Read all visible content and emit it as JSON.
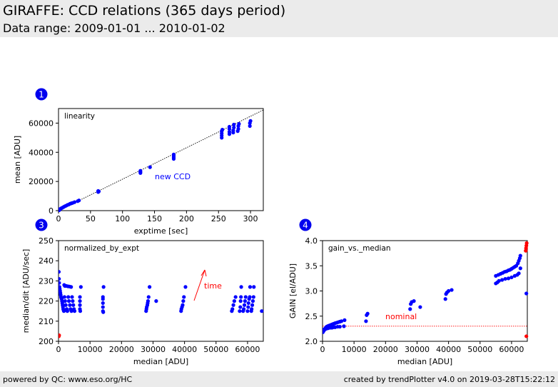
{
  "header": {
    "title": "GIRAFFE: CCD relations (365 days period)",
    "subtitle": "Data range: 2009-01-01 ... 2010-01-02"
  },
  "footer": {
    "left": "powered by QC: www.eso.org/HC",
    "right": "created by trendPlotter v4.0 on 2019-03-28T15:22:12"
  },
  "colors": {
    "points": "#0000ff",
    "annotation": "#ff0000",
    "badge": "#0000ee",
    "fit_line": "#000000"
  },
  "chart_data": [
    {
      "type": "scatter",
      "badge": "1",
      "label": "linearity",
      "xlabel": "exptime [sec]",
      "ylabel": "mean [ADU]",
      "xlim": [
        0,
        320
      ],
      "ylim": [
        0,
        70000
      ],
      "xticks": [
        0,
        50,
        100,
        150,
        200,
        250,
        300
      ],
      "yticks": [
        0,
        20000,
        40000,
        60000
      ],
      "annotation": "new CCD",
      "fit_line": [
        [
          0,
          0
        ],
        [
          320,
          69000
        ]
      ],
      "points": [
        [
          0.2,
          500
        ],
        [
          0.5,
          900
        ],
        [
          1,
          300
        ],
        [
          2,
          800
        ],
        [
          3,
          1200
        ],
        [
          4,
          1500
        ],
        [
          5,
          1800
        ],
        [
          6,
          2000
        ],
        [
          8,
          2500
        ],
        [
          10,
          3000
        ],
        [
          12,
          3400
        ],
        [
          14,
          3900
        ],
        [
          16,
          4200
        ],
        [
          18,
          4700
        ],
        [
          20,
          5000
        ],
        [
          22,
          5300
        ],
        [
          25,
          5800
        ],
        [
          30,
          6500
        ],
        [
          32,
          7000
        ],
        [
          62,
          12800
        ],
        [
          62,
          13500
        ],
        [
          63,
          13200
        ],
        [
          128,
          25800
        ],
        [
          128,
          26500
        ],
        [
          128,
          27300
        ],
        [
          143,
          29800
        ],
        [
          180,
          35500
        ],
        [
          180,
          36500
        ],
        [
          180,
          37500
        ],
        [
          180,
          38500
        ],
        [
          255,
          50000
        ],
        [
          255,
          51500
        ],
        [
          255,
          53000
        ],
        [
          255,
          54500
        ],
        [
          256,
          55500
        ],
        [
          267,
          52500
        ],
        [
          267,
          54000
        ],
        [
          267,
          56000
        ],
        [
          267,
          57500
        ],
        [
          273,
          53500
        ],
        [
          273,
          55000
        ],
        [
          274,
          57000
        ],
        [
          274,
          59000
        ],
        [
          280,
          54500
        ],
        [
          281,
          56000
        ],
        [
          281,
          58000
        ],
        [
          282,
          59500
        ],
        [
          299,
          58000
        ],
        [
          299,
          60000
        ],
        [
          300,
          61500
        ]
      ]
    },
    {
      "type": "scatter",
      "badge": "3",
      "label": "normalized_by_expt",
      "xlabel": "median [ADU]",
      "ylabel": "median/dit [ADU/sec]",
      "xlim": [
        0,
        65000
      ],
      "ylim": [
        200,
        250
      ],
      "xticks": [
        0,
        10000,
        20000,
        30000,
        40000,
        50000,
        60000
      ],
      "yticks": [
        200,
        210,
        220,
        230,
        240,
        250
      ],
      "annotation": "time",
      "points": [
        [
          100,
          234.5
        ],
        [
          150,
          231
        ],
        [
          200,
          229
        ],
        [
          300,
          227
        ],
        [
          400,
          226
        ],
        [
          500,
          225
        ],
        [
          600,
          224
        ],
        [
          700,
          223
        ],
        [
          800,
          222
        ],
        [
          900,
          221.5
        ],
        [
          1000,
          221
        ],
        [
          1100,
          220
        ],
        [
          1200,
          219
        ],
        [
          1300,
          218
        ],
        [
          1400,
          217
        ],
        [
          1500,
          216
        ],
        [
          1600,
          215.5
        ],
        [
          1700,
          215
        ],
        [
          1800,
          228
        ],
        [
          2000,
          227.5
        ],
        [
          2200,
          227.5
        ],
        [
          2500,
          227.5
        ],
        [
          3000,
          227.3
        ],
        [
          3500,
          227.2
        ],
        [
          4000,
          227
        ],
        [
          1900,
          222
        ],
        [
          2100,
          220
        ],
        [
          2300,
          218
        ],
        [
          2600,
          216
        ],
        [
          2800,
          215
        ],
        [
          3100,
          222
        ],
        [
          3300,
          220
        ],
        [
          3600,
          218
        ],
        [
          3800,
          216
        ],
        [
          4100,
          215
        ],
        [
          4300,
          222
        ],
        [
          4500,
          220
        ],
        [
          4700,
          218
        ],
        [
          4900,
          216
        ],
        [
          5100,
          215
        ],
        [
          6800,
          222
        ],
        [
          6800,
          220
        ],
        [
          6800,
          218
        ],
        [
          6800,
          216
        ],
        [
          6900,
          215
        ],
        [
          7100,
          227
        ],
        [
          14100,
          222
        ],
        [
          14100,
          221
        ],
        [
          14100,
          219
        ],
        [
          14100,
          217
        ],
        [
          14100,
          215
        ],
        [
          14200,
          214.5
        ],
        [
          14300,
          227
        ],
        [
          27800,
          215
        ],
        [
          27900,
          216
        ],
        [
          28000,
          217
        ],
        [
          28200,
          218
        ],
        [
          28300,
          219
        ],
        [
          28400,
          220
        ],
        [
          28600,
          222
        ],
        [
          28900,
          227
        ],
        [
          31000,
          220
        ],
        [
          38900,
          215
        ],
        [
          39000,
          216
        ],
        [
          39200,
          217
        ],
        [
          39400,
          218
        ],
        [
          39600,
          220
        ],
        [
          39800,
          222
        ],
        [
          40300,
          227
        ],
        [
          55000,
          215
        ],
        [
          55200,
          216
        ],
        [
          55500,
          218
        ],
        [
          55800,
          220
        ],
        [
          56200,
          222
        ],
        [
          57500,
          215
        ],
        [
          57700,
          217
        ],
        [
          57800,
          220
        ],
        [
          57900,
          222
        ],
        [
          58000,
          227
        ],
        [
          58600,
          215
        ],
        [
          58800,
          216
        ],
        [
          59000,
          218
        ],
        [
          59200,
          220
        ],
        [
          59400,
          222
        ],
        [
          60000,
          215
        ],
        [
          60200,
          217
        ],
        [
          60300,
          219
        ],
        [
          60500,
          221
        ],
        [
          60700,
          222
        ],
        [
          60800,
          227
        ],
        [
          61200,
          215
        ],
        [
          61300,
          216
        ],
        [
          61500,
          218
        ],
        [
          61700,
          220
        ],
        [
          61900,
          222
        ],
        [
          62000,
          227
        ],
        [
          64500,
          215
        ]
      ],
      "red_points": [
        [
          100,
          202.5
        ],
        [
          200,
          203
        ]
      ]
    },
    {
      "type": "scatter",
      "badge": "4",
      "label": "gain_vs._median",
      "xlabel": "median [ADU]",
      "ylabel": "GAIN [el/ADU]",
      "xlim": [
        0,
        65000
      ],
      "ylim": [
        2.0,
        4.0
      ],
      "xticks": [
        0,
        10000,
        20000,
        30000,
        40000,
        50000,
        60000
      ],
      "yticks": [
        2.0,
        2.5,
        3.0,
        3.5,
        4.0
      ],
      "annotation": "nominal",
      "nominal_value": 2.3,
      "points": [
        [
          100,
          2.18
        ],
        [
          300,
          2.2
        ],
        [
          500,
          2.22
        ],
        [
          800,
          2.25
        ],
        [
          1000,
          2.27
        ],
        [
          1300,
          2.29
        ],
        [
          1600,
          2.3
        ],
        [
          2000,
          2.31
        ],
        [
          2400,
          2.32
        ],
        [
          2800,
          2.33
        ],
        [
          3200,
          2.34
        ],
        [
          3600,
          2.35
        ],
        [
          4000,
          2.36
        ],
        [
          4500,
          2.37
        ],
        [
          5000,
          2.38
        ],
        [
          5500,
          2.39
        ],
        [
          6000,
          2.4
        ],
        [
          7000,
          2.42
        ],
        [
          300,
          2.23
        ],
        [
          800,
          2.24
        ],
        [
          1200,
          2.25
        ],
        [
          1800,
          2.26
        ],
        [
          2500,
          2.27
        ],
        [
          3000,
          2.27
        ],
        [
          3500,
          2.28
        ],
        [
          4000,
          2.28
        ],
        [
          4800,
          2.29
        ],
        [
          5500,
          2.29
        ],
        [
          6800,
          2.3
        ],
        [
          13800,
          2.4
        ],
        [
          14000,
          2.52
        ],
        [
          14300,
          2.55
        ],
        [
          27800,
          2.64
        ],
        [
          28000,
          2.74
        ],
        [
          28300,
          2.78
        ],
        [
          29000,
          2.8
        ],
        [
          31000,
          2.68
        ],
        [
          39000,
          2.84
        ],
        [
          39200,
          2.94
        ],
        [
          39500,
          2.97
        ],
        [
          40000,
          3.0
        ],
        [
          41000,
          3.02
        ],
        [
          55000,
          3.15
        ],
        [
          55500,
          3.17
        ],
        [
          56000,
          3.2
        ],
        [
          57000,
          3.22
        ],
        [
          58000,
          3.24
        ],
        [
          59000,
          3.25
        ],
        [
          60000,
          3.27
        ],
        [
          61000,
          3.3
        ],
        [
          61800,
          3.32
        ],
        [
          62300,
          3.35
        ],
        [
          62800,
          3.45
        ],
        [
          55000,
          3.3
        ],
        [
          55800,
          3.32
        ],
        [
          56500,
          3.34
        ],
        [
          57200,
          3.36
        ],
        [
          57800,
          3.38
        ],
        [
          58400,
          3.39
        ],
        [
          59000,
          3.41
        ],
        [
          59500,
          3.42
        ],
        [
          60000,
          3.44
        ],
        [
          60500,
          3.46
        ],
        [
          61000,
          3.48
        ],
        [
          61500,
          3.5
        ],
        [
          62000,
          3.55
        ],
        [
          62300,
          3.6
        ],
        [
          62600,
          3.65
        ],
        [
          62800,
          3.7
        ],
        [
          64700,
          2.95
        ]
      ],
      "red_points": [
        [
          64500,
          3.8
        ],
        [
          64600,
          3.85
        ],
        [
          64700,
          3.9
        ],
        [
          64800,
          3.95
        ],
        [
          64700,
          2.1
        ]
      ]
    }
  ]
}
